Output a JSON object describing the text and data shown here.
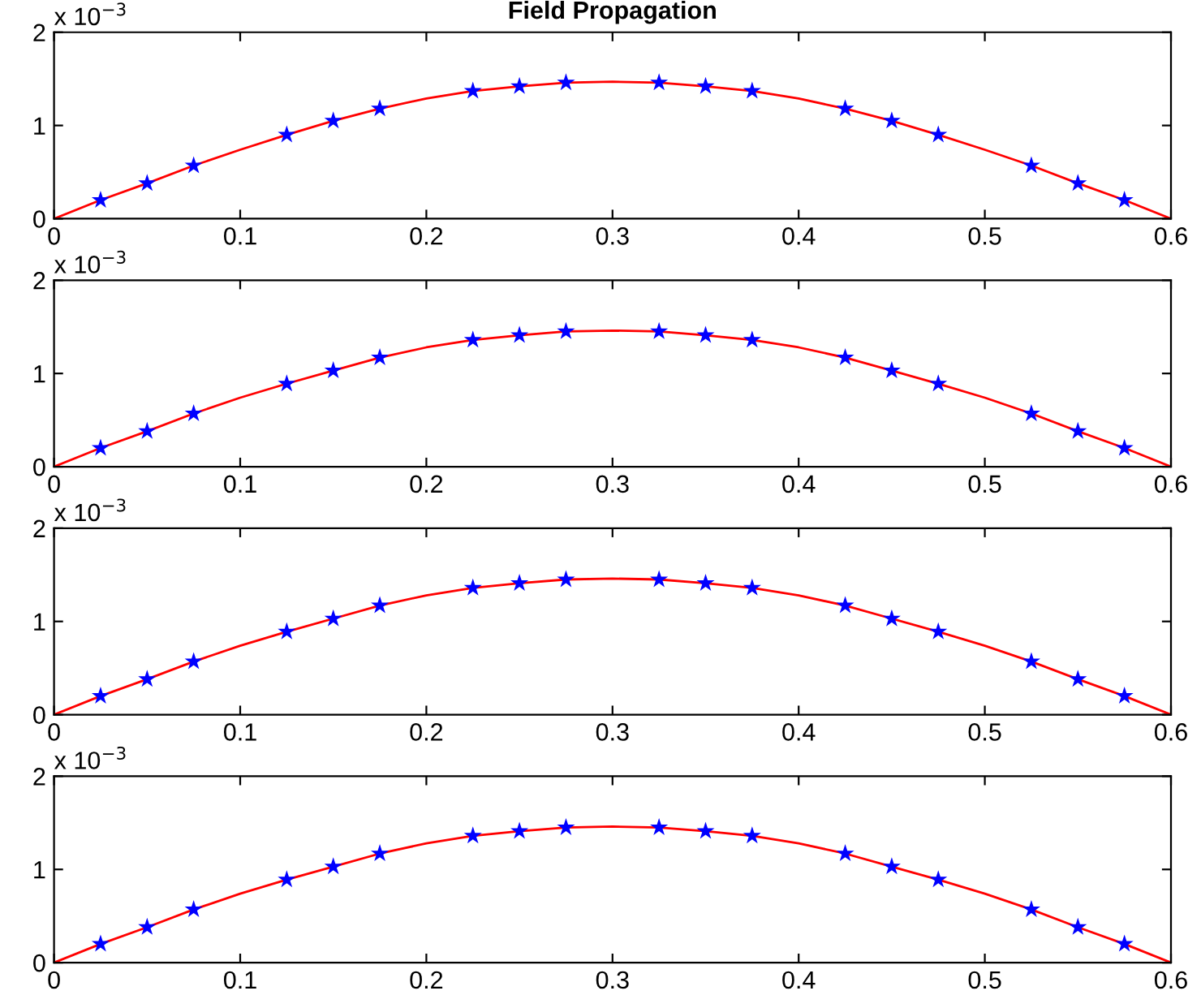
{
  "chart_data": [
    {
      "type": "line",
      "title": "Field Propagation",
      "annotations": [
        "x 10$^{−3}$"
      ],
      "xlim": [
        0,
        0.6
      ],
      "xticks": [
        0,
        0.1,
        0.2,
        0.3,
        0.4,
        0.5,
        0.6
      ],
      "ylim": [
        0,
        2
      ],
      "yticks": [
        0,
        1,
        2
      ],
      "grid": false,
      "series": [
        {
          "type": "line",
          "color": "#ff0000",
          "marker": "none",
          "line_style": "solid",
          "x": [
            0,
            0.025,
            0.05,
            0.075,
            0.1,
            0.125,
            0.15,
            0.175,
            0.2,
            0.225,
            0.25,
            0.275,
            0.3,
            0.325,
            0.35,
            0.375,
            0.4,
            0.425,
            0.45,
            0.475,
            0.5,
            0.525,
            0.55,
            0.575,
            0.6
          ],
          "values": [
            0,
            0.2,
            0.38,
            0.57,
            0.74,
            0.9,
            1.05,
            1.18,
            1.29,
            1.37,
            1.42,
            1.46,
            1.47,
            1.46,
            1.42,
            1.37,
            1.29,
            1.18,
            1.05,
            0.9,
            0.74,
            0.57,
            0.38,
            0.2,
            0
          ]
        },
        {
          "type": "scatter",
          "color": "#0000ff",
          "marker": "star",
          "x": [
            0.025,
            0.05,
            0.075,
            0.125,
            0.15,
            0.175,
            0.225,
            0.25,
            0.275,
            0.325,
            0.35,
            0.375,
            0.425,
            0.45,
            0.475,
            0.525,
            0.55,
            0.575
          ],
          "values": [
            0.2,
            0.38,
            0.57,
            0.9,
            1.05,
            1.18,
            1.37,
            1.42,
            1.46,
            1.46,
            1.42,
            1.37,
            1.18,
            1.05,
            0.9,
            0.57,
            0.38,
            0.2
          ]
        }
      ]
    },
    {
      "type": "line",
      "annotations": [
        "x 10$^{−3}$"
      ],
      "xlim": [
        0,
        0.6
      ],
      "xticks": [
        0,
        0.1,
        0.2,
        0.3,
        0.4,
        0.5,
        0.6
      ],
      "ylim": [
        0,
        2
      ],
      "yticks": [
        0,
        1,
        2
      ],
      "grid": false,
      "series": [
        {
          "type": "line",
          "color": "#ff0000",
          "marker": "none",
          "line_style": "solid",
          "x": [
            0,
            0.025,
            0.05,
            0.075,
            0.1,
            0.125,
            0.15,
            0.175,
            0.2,
            0.225,
            0.25,
            0.275,
            0.3,
            0.325,
            0.35,
            0.375,
            0.4,
            0.425,
            0.45,
            0.475,
            0.5,
            0.525,
            0.55,
            0.575,
            0.6
          ],
          "values": [
            0,
            0.2,
            0.38,
            0.57,
            0.74,
            0.89,
            1.03,
            1.17,
            1.28,
            1.36,
            1.41,
            1.45,
            1.46,
            1.45,
            1.41,
            1.36,
            1.28,
            1.17,
            1.03,
            0.89,
            0.74,
            0.57,
            0.38,
            0.2,
            0
          ]
        },
        {
          "type": "scatter",
          "color": "#0000ff",
          "marker": "star",
          "x": [
            0.025,
            0.05,
            0.075,
            0.125,
            0.15,
            0.175,
            0.225,
            0.25,
            0.275,
            0.325,
            0.35,
            0.375,
            0.425,
            0.45,
            0.475,
            0.525,
            0.55,
            0.575
          ],
          "values": [
            0.2,
            0.38,
            0.57,
            0.89,
            1.03,
            1.17,
            1.36,
            1.41,
            1.45,
            1.45,
            1.41,
            1.36,
            1.17,
            1.03,
            0.89,
            0.57,
            0.38,
            0.2
          ]
        }
      ]
    },
    {
      "type": "line",
      "annotations": [
        "x 10$^{−3}$"
      ],
      "xlim": [
        0,
        0.6
      ],
      "xticks": [
        0,
        0.1,
        0.2,
        0.3,
        0.4,
        0.5,
        0.6
      ],
      "ylim": [
        0,
        2
      ],
      "yticks": [
        0,
        1,
        2
      ],
      "grid": false,
      "series": [
        {
          "type": "line",
          "color": "#ff0000",
          "marker": "none",
          "line_style": "solid",
          "x": [
            0,
            0.025,
            0.05,
            0.075,
            0.1,
            0.125,
            0.15,
            0.175,
            0.2,
            0.225,
            0.25,
            0.275,
            0.3,
            0.325,
            0.35,
            0.375,
            0.4,
            0.425,
            0.45,
            0.475,
            0.5,
            0.525,
            0.55,
            0.575,
            0.6
          ],
          "values": [
            0,
            0.2,
            0.38,
            0.57,
            0.74,
            0.89,
            1.03,
            1.17,
            1.28,
            1.36,
            1.41,
            1.45,
            1.46,
            1.45,
            1.41,
            1.36,
            1.28,
            1.17,
            1.03,
            0.89,
            0.74,
            0.57,
            0.38,
            0.2,
            0
          ]
        },
        {
          "type": "scatter",
          "color": "#0000ff",
          "marker": "star",
          "x": [
            0.025,
            0.05,
            0.075,
            0.125,
            0.15,
            0.175,
            0.225,
            0.25,
            0.275,
            0.325,
            0.35,
            0.375,
            0.425,
            0.45,
            0.475,
            0.525,
            0.55,
            0.575
          ],
          "values": [
            0.2,
            0.38,
            0.57,
            0.89,
            1.03,
            1.17,
            1.36,
            1.41,
            1.45,
            1.45,
            1.41,
            1.36,
            1.17,
            1.03,
            0.89,
            0.57,
            0.38,
            0.2
          ]
        }
      ]
    },
    {
      "type": "line",
      "annotations": [
        "x 10$^{−3}$"
      ],
      "xlim": [
        0,
        0.6
      ],
      "xticks": [
        0,
        0.1,
        0.2,
        0.3,
        0.4,
        0.5,
        0.6
      ],
      "ylim": [
        0,
        2
      ],
      "yticks": [
        0,
        1,
        2
      ],
      "grid": false,
      "series": [
        {
          "type": "line",
          "color": "#ff0000",
          "marker": "none",
          "line_style": "solid",
          "x": [
            0,
            0.025,
            0.05,
            0.075,
            0.1,
            0.125,
            0.15,
            0.175,
            0.2,
            0.225,
            0.25,
            0.275,
            0.3,
            0.325,
            0.35,
            0.375,
            0.4,
            0.425,
            0.45,
            0.475,
            0.5,
            0.525,
            0.55,
            0.575,
            0.6
          ],
          "values": [
            0,
            0.2,
            0.38,
            0.57,
            0.74,
            0.89,
            1.03,
            1.17,
            1.28,
            1.36,
            1.41,
            1.45,
            1.46,
            1.45,
            1.41,
            1.36,
            1.28,
            1.17,
            1.03,
            0.89,
            0.74,
            0.57,
            0.38,
            0.2,
            0
          ]
        },
        {
          "type": "scatter",
          "color": "#0000ff",
          "marker": "star",
          "x": [
            0.025,
            0.05,
            0.075,
            0.125,
            0.15,
            0.175,
            0.225,
            0.25,
            0.275,
            0.325,
            0.35,
            0.375,
            0.425,
            0.45,
            0.475,
            0.525,
            0.55,
            0.575
          ],
          "values": [
            0.2,
            0.38,
            0.57,
            0.89,
            1.03,
            1.17,
            1.36,
            1.41,
            1.45,
            1.45,
            1.41,
            1.36,
            1.17,
            1.03,
            0.89,
            0.57,
            0.38,
            0.2
          ]
        }
      ]
    }
  ]
}
